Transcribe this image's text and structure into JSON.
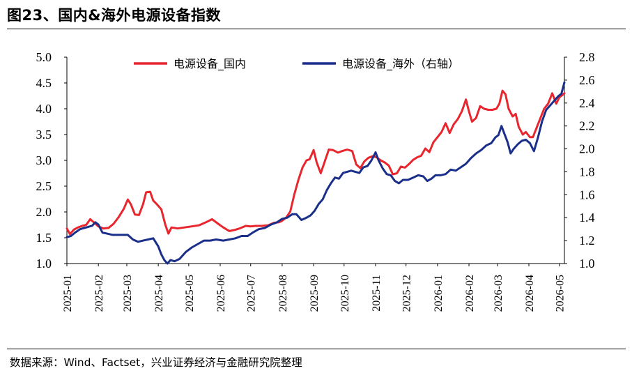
{
  "figure": {
    "title": "图23、国内&海外电源设备指数",
    "source": "数据来源：Wind、Factset，兴业证券经济与金融研究院整理"
  },
  "chart_data": {
    "type": "line",
    "title": "",
    "xlabel": "",
    "ylabel_left": "",
    "ylabel_right": "",
    "legend_position": "top-center",
    "grid": false,
    "y_left_range": [
      1.0,
      5.0
    ],
    "y_left_ticks": [
      "1.0",
      "1.5",
      "2.0",
      "2.5",
      "3.0",
      "3.5",
      "4.0",
      "4.5",
      "5.0"
    ],
    "y_right_range": [
      1.0,
      2.8
    ],
    "y_right_ticks": [
      "1.0",
      "1.2",
      "1.4",
      "1.6",
      "1.8",
      "2.0",
      "2.2",
      "2.4",
      "2.6",
      "2.8"
    ],
    "x_range": [
      "2025-01-01",
      "2026-05-06"
    ],
    "x_ticks": [
      "2025-01",
      "2025-02",
      "2025-03",
      "2025-04",
      "2025-05",
      "2025-06",
      "2025-07",
      "2025-08",
      "2025-09",
      "2025-10",
      "2025-11",
      "2025-12",
      "2026-01",
      "2026-02",
      "2026-03",
      "2026-04",
      "2026-05"
    ],
    "series": [
      {
        "name": "电源设备_国内",
        "axis": "left",
        "color": "#e8262d",
        "points": [
          [
            "2025-01-01",
            1.68
          ],
          [
            "2025-01-04",
            1.57
          ],
          [
            "2025-01-08",
            1.66
          ],
          [
            "2025-01-12",
            1.7
          ],
          [
            "2025-01-16",
            1.73
          ],
          [
            "2025-01-20",
            1.75
          ],
          [
            "2025-01-24",
            1.86
          ],
          [
            "2025-01-28",
            1.79
          ],
          [
            "2025-02-01",
            1.72
          ],
          [
            "2025-02-06",
            1.68
          ],
          [
            "2025-02-11",
            1.69
          ],
          [
            "2025-02-16",
            1.77
          ],
          [
            "2025-02-21",
            1.9
          ],
          [
            "2025-02-26",
            2.06
          ],
          [
            "2025-03-02",
            2.24
          ],
          [
            "2025-03-05",
            2.15
          ],
          [
            "2025-03-09",
            1.95
          ],
          [
            "2025-03-13",
            1.94
          ],
          [
            "2025-03-17",
            2.15
          ],
          [
            "2025-03-20",
            2.38
          ],
          [
            "2025-03-24",
            2.39
          ],
          [
            "2025-03-27",
            2.22
          ],
          [
            "2025-03-31",
            2.14
          ],
          [
            "2025-04-04",
            2.05
          ],
          [
            "2025-04-08",
            1.75
          ],
          [
            "2025-04-11",
            1.58
          ],
          [
            "2025-04-14",
            1.7
          ],
          [
            "2025-04-20",
            1.68
          ],
          [
            "2025-04-27",
            1.7
          ],
          [
            "2025-05-04",
            1.72
          ],
          [
            "2025-05-11",
            1.74
          ],
          [
            "2025-05-18",
            1.8
          ],
          [
            "2025-05-24",
            1.86
          ],
          [
            "2025-05-30",
            1.77
          ],
          [
            "2025-06-04",
            1.7
          ],
          [
            "2025-06-10",
            1.63
          ],
          [
            "2025-06-15",
            1.65
          ],
          [
            "2025-06-20",
            1.68
          ],
          [
            "2025-06-26",
            1.73
          ],
          [
            "2025-07-01",
            1.72
          ],
          [
            "2025-07-06",
            1.73
          ],
          [
            "2025-07-12",
            1.73
          ],
          [
            "2025-07-18",
            1.74
          ],
          [
            "2025-07-24",
            1.79
          ],
          [
            "2025-07-29",
            1.8
          ],
          [
            "2025-08-01",
            1.83
          ],
          [
            "2025-08-05",
            1.89
          ],
          [
            "2025-08-09",
            2.01
          ],
          [
            "2025-08-13",
            2.34
          ],
          [
            "2025-08-17",
            2.62
          ],
          [
            "2025-08-21",
            2.86
          ],
          [
            "2025-08-25",
            3.0
          ],
          [
            "2025-08-28",
            3.02
          ],
          [
            "2025-09-01",
            3.2
          ],
          [
            "2025-09-04",
            2.96
          ],
          [
            "2025-09-08",
            2.75
          ],
          [
            "2025-09-12",
            2.98
          ],
          [
            "2025-09-16",
            3.21
          ],
          [
            "2025-09-20",
            3.2
          ],
          [
            "2025-09-25",
            3.15
          ],
          [
            "2025-09-29",
            3.18
          ],
          [
            "2025-10-04",
            3.21
          ],
          [
            "2025-10-09",
            3.18
          ],
          [
            "2025-10-13",
            2.92
          ],
          [
            "2025-10-17",
            2.85
          ],
          [
            "2025-10-21",
            2.98
          ],
          [
            "2025-10-25",
            3.05
          ],
          [
            "2025-10-29",
            3.08
          ],
          [
            "2025-11-02",
            3.06
          ],
          [
            "2025-11-06",
            3.0
          ],
          [
            "2025-11-10",
            2.96
          ],
          [
            "2025-11-14",
            2.9
          ],
          [
            "2025-11-18",
            2.73
          ],
          [
            "2025-11-22",
            2.75
          ],
          [
            "2025-11-26",
            2.88
          ],
          [
            "2025-11-30",
            2.86
          ],
          [
            "2025-12-04",
            2.93
          ],
          [
            "2025-12-08",
            3.01
          ],
          [
            "2025-12-12",
            3.06
          ],
          [
            "2025-12-16",
            3.09
          ],
          [
            "2025-12-20",
            3.23
          ],
          [
            "2025-12-24",
            3.16
          ],
          [
            "2025-12-28",
            3.35
          ],
          [
            "2026-01-01",
            3.45
          ],
          [
            "2026-01-05",
            3.55
          ],
          [
            "2026-01-09",
            3.72
          ],
          [
            "2026-01-13",
            3.53
          ],
          [
            "2026-01-17",
            3.7
          ],
          [
            "2026-01-21",
            3.8
          ],
          [
            "2026-01-25",
            3.95
          ],
          [
            "2026-01-29",
            4.18
          ],
          [
            "2026-02-01",
            3.95
          ],
          [
            "2026-02-04",
            3.75
          ],
          [
            "2026-02-08",
            3.82
          ],
          [
            "2026-02-12",
            4.05
          ],
          [
            "2026-02-16",
            4.0
          ],
          [
            "2026-02-20",
            3.98
          ],
          [
            "2026-02-24",
            3.98
          ],
          [
            "2026-02-28",
            4.0
          ],
          [
            "2026-03-03",
            4.1
          ],
          [
            "2026-03-06",
            4.35
          ],
          [
            "2026-03-09",
            4.28
          ],
          [
            "2026-03-12",
            4.0
          ],
          [
            "2026-03-16",
            3.85
          ],
          [
            "2026-03-19",
            3.9
          ],
          [
            "2026-03-22",
            3.65
          ],
          [
            "2026-03-26",
            3.5
          ],
          [
            "2026-03-29",
            3.55
          ],
          [
            "2026-04-02",
            3.45
          ],
          [
            "2026-04-05",
            3.45
          ],
          [
            "2026-04-08",
            3.6
          ],
          [
            "2026-04-12",
            3.8
          ],
          [
            "2026-04-16",
            4.0
          ],
          [
            "2026-04-20",
            4.1
          ],
          [
            "2026-04-24",
            4.3
          ],
          [
            "2026-04-28",
            4.1
          ],
          [
            "2026-05-01",
            4.22
          ],
          [
            "2026-05-06",
            4.3
          ]
        ]
      },
      {
        "name": "电源设备_海外（右轴）",
        "axis": "right",
        "color": "#1a2f8a",
        "points": [
          [
            "2025-01-01",
            1.23
          ],
          [
            "2025-01-05",
            1.24
          ],
          [
            "2025-01-09",
            1.27
          ],
          [
            "2025-01-14",
            1.3
          ],
          [
            "2025-01-18",
            1.31
          ],
          [
            "2025-01-22",
            1.32
          ],
          [
            "2025-01-26",
            1.33
          ],
          [
            "2025-01-29",
            1.36
          ],
          [
            "2025-02-01",
            1.34
          ],
          [
            "2025-02-05",
            1.27
          ],
          [
            "2025-02-10",
            1.26
          ],
          [
            "2025-02-15",
            1.25
          ],
          [
            "2025-02-20",
            1.25
          ],
          [
            "2025-02-25",
            1.25
          ],
          [
            "2025-03-02",
            1.25
          ],
          [
            "2025-03-07",
            1.21
          ],
          [
            "2025-03-12",
            1.19
          ],
          [
            "2025-03-17",
            1.2
          ],
          [
            "2025-03-22",
            1.21
          ],
          [
            "2025-03-27",
            1.22
          ],
          [
            "2025-04-01",
            1.15
          ],
          [
            "2025-04-04",
            1.08
          ],
          [
            "2025-04-07",
            1.03
          ],
          [
            "2025-04-10",
            1.0
          ],
          [
            "2025-04-13",
            1.03
          ],
          [
            "2025-04-17",
            1.02
          ],
          [
            "2025-04-22",
            1.04
          ],
          [
            "2025-04-28",
            1.1
          ],
          [
            "2025-05-04",
            1.14
          ],
          [
            "2025-05-10",
            1.17
          ],
          [
            "2025-05-16",
            1.2
          ],
          [
            "2025-05-22",
            1.2
          ],
          [
            "2025-05-28",
            1.21
          ],
          [
            "2025-06-04",
            1.2
          ],
          [
            "2025-06-10",
            1.21
          ],
          [
            "2025-06-16",
            1.22
          ],
          [
            "2025-06-22",
            1.24
          ],
          [
            "2025-06-28",
            1.24
          ],
          [
            "2025-07-03",
            1.27
          ],
          [
            "2025-07-09",
            1.3
          ],
          [
            "2025-07-15",
            1.31
          ],
          [
            "2025-07-21",
            1.34
          ],
          [
            "2025-07-27",
            1.36
          ],
          [
            "2025-08-01",
            1.39
          ],
          [
            "2025-08-06",
            1.4
          ],
          [
            "2025-08-11",
            1.43
          ],
          [
            "2025-08-15",
            1.43
          ],
          [
            "2025-08-20",
            1.38
          ],
          [
            "2025-08-25",
            1.4
          ],
          [
            "2025-08-29",
            1.42
          ],
          [
            "2025-09-02",
            1.46
          ],
          [
            "2025-09-06",
            1.52
          ],
          [
            "2025-09-10",
            1.56
          ],
          [
            "2025-09-14",
            1.64
          ],
          [
            "2025-09-18",
            1.7
          ],
          [
            "2025-09-22",
            1.75
          ],
          [
            "2025-09-26",
            1.74
          ],
          [
            "2025-09-30",
            1.79
          ],
          [
            "2025-10-04",
            1.8
          ],
          [
            "2025-10-08",
            1.81
          ],
          [
            "2025-10-12",
            1.8
          ],
          [
            "2025-10-16",
            1.79
          ],
          [
            "2025-10-20",
            1.84
          ],
          [
            "2025-10-24",
            1.85
          ],
          [
            "2025-10-28",
            1.9
          ],
          [
            "2025-11-01",
            1.97
          ],
          [
            "2025-11-04",
            1.9
          ],
          [
            "2025-11-08",
            1.83
          ],
          [
            "2025-11-12",
            1.78
          ],
          [
            "2025-11-16",
            1.77
          ],
          [
            "2025-11-20",
            1.72
          ],
          [
            "2025-11-24",
            1.7
          ],
          [
            "2025-11-28",
            1.73
          ],
          [
            "2025-12-03",
            1.73
          ],
          [
            "2025-12-08",
            1.75
          ],
          [
            "2025-12-13",
            1.77
          ],
          [
            "2025-12-18",
            1.76
          ],
          [
            "2025-12-22",
            1.72
          ],
          [
            "2025-12-26",
            1.74
          ],
          [
            "2025-12-30",
            1.77
          ],
          [
            "2026-01-04",
            1.77
          ],
          [
            "2026-01-09",
            1.78
          ],
          [
            "2026-01-14",
            1.82
          ],
          [
            "2026-01-19",
            1.81
          ],
          [
            "2026-01-24",
            1.84
          ],
          [
            "2026-01-29",
            1.87
          ],
          [
            "2026-02-03",
            1.92
          ],
          [
            "2026-02-08",
            1.96
          ],
          [
            "2026-02-13",
            1.99
          ],
          [
            "2026-02-18",
            2.03
          ],
          [
            "2026-02-23",
            2.05
          ],
          [
            "2026-02-27",
            2.1
          ],
          [
            "2026-03-02",
            2.12
          ],
          [
            "2026-03-05",
            2.2
          ],
          [
            "2026-03-08",
            2.13
          ],
          [
            "2026-03-11",
            2.06
          ],
          [
            "2026-03-14",
            1.96
          ],
          [
            "2026-03-17",
            2.0
          ],
          [
            "2026-03-21",
            2.04
          ],
          [
            "2026-03-25",
            2.07
          ],
          [
            "2026-03-29",
            2.08
          ],
          [
            "2026-04-02",
            2.05
          ],
          [
            "2026-04-06",
            1.98
          ],
          [
            "2026-04-10",
            2.1
          ],
          [
            "2026-04-14",
            2.24
          ],
          [
            "2026-04-18",
            2.34
          ],
          [
            "2026-04-22",
            2.38
          ],
          [
            "2026-04-26",
            2.42
          ],
          [
            "2026-04-30",
            2.46
          ],
          [
            "2026-05-03",
            2.48
          ],
          [
            "2026-05-06",
            2.58
          ]
        ]
      }
    ]
  }
}
